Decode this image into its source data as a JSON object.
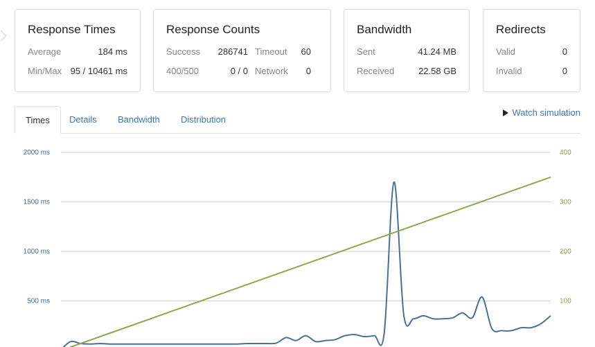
{
  "cards": {
    "response_times": {
      "title": "Response Times",
      "average_label": "Average",
      "average_value": "184 ms",
      "minmax_label": "Min/Max",
      "minmax_value": "95 / 10461 ms"
    },
    "response_counts": {
      "title": "Response Counts",
      "success_label": "Success",
      "success_value": "286741",
      "timeout_label": "Timeout",
      "timeout_value": "60",
      "errors_label": "400/500",
      "errors_value": "0 / 0",
      "network_label": "Network",
      "network_value": "0"
    },
    "bandwidth": {
      "title": "Bandwidth",
      "sent_label": "Sent",
      "sent_value": "41.24 MB",
      "received_label": "Received",
      "received_value": "22.58 GB"
    },
    "redirects": {
      "title": "Redirects",
      "valid_label": "Valid",
      "valid_value": "0",
      "invalid_label": "Invalid",
      "invalid_value": "0"
    }
  },
  "tabs": [
    {
      "label": "Times",
      "active": true
    },
    {
      "label": "Details",
      "active": false
    },
    {
      "label": "Bandwidth",
      "active": false
    },
    {
      "label": "Distribution",
      "active": false
    }
  ],
  "watch_simulation": {
    "label": "Watch simulation",
    "icon": "play-icon"
  },
  "colors": {
    "response_time": "#4a6f96",
    "users": "#8ea64e",
    "accent": "#3f78b0"
  },
  "chart_data": {
    "type": "line",
    "grid": true,
    "x": [
      0,
      1,
      2,
      3,
      4,
      5,
      6,
      7,
      8,
      9,
      10,
      11,
      12,
      13,
      14,
      15,
      16,
      17,
      18,
      19,
      20,
      21,
      22,
      23,
      24,
      25,
      26,
      27,
      28,
      29,
      30,
      31,
      32,
      33,
      34,
      35,
      36,
      37,
      38,
      39,
      40,
      41,
      42,
      43,
      44,
      45,
      46,
      47,
      48,
      49,
      50
    ],
    "y_left": {
      "ticks": [
        "2000 ms",
        "1500 ms",
        "1000 ms",
        "500 ms"
      ],
      "tick_values": [
        2000,
        1500,
        1000,
        500
      ],
      "range": [
        0,
        2000
      ]
    },
    "y_right": {
      "ticks": [
        "400",
        "300",
        "200",
        "100"
      ],
      "tick_values": [
        400,
        300,
        200,
        100
      ],
      "range": [
        0,
        400
      ]
    },
    "series": [
      {
        "axis": "left",
        "color": "#4a6f96",
        "values": [
          10,
          90,
          70,
          65,
          70,
          65,
          65,
          65,
          65,
          65,
          65,
          65,
          65,
          65,
          65,
          65,
          65,
          65,
          65,
          70,
          70,
          70,
          75,
          130,
          100,
          150,
          90,
          100,
          110,
          150,
          160,
          140,
          150,
          170,
          1700,
          360,
          320,
          350,
          320,
          320,
          330,
          380,
          330,
          540,
          220,
          200,
          200,
          230,
          230,
          270,
          350
        ]
      },
      {
        "axis": "right",
        "color": "#8ea64e",
        "values": [
          0,
          7,
          14,
          21,
          28,
          35,
          42,
          49,
          56,
          63,
          70,
          77,
          84,
          91,
          98,
          105,
          112,
          119,
          126,
          133,
          140,
          147,
          154,
          161,
          168,
          175,
          182,
          189,
          196,
          203,
          210,
          217,
          224,
          231,
          238,
          245,
          252,
          259,
          266,
          273,
          280,
          287,
          294,
          301,
          308,
          315,
          322,
          329,
          336,
          343,
          350
        ]
      }
    ]
  }
}
